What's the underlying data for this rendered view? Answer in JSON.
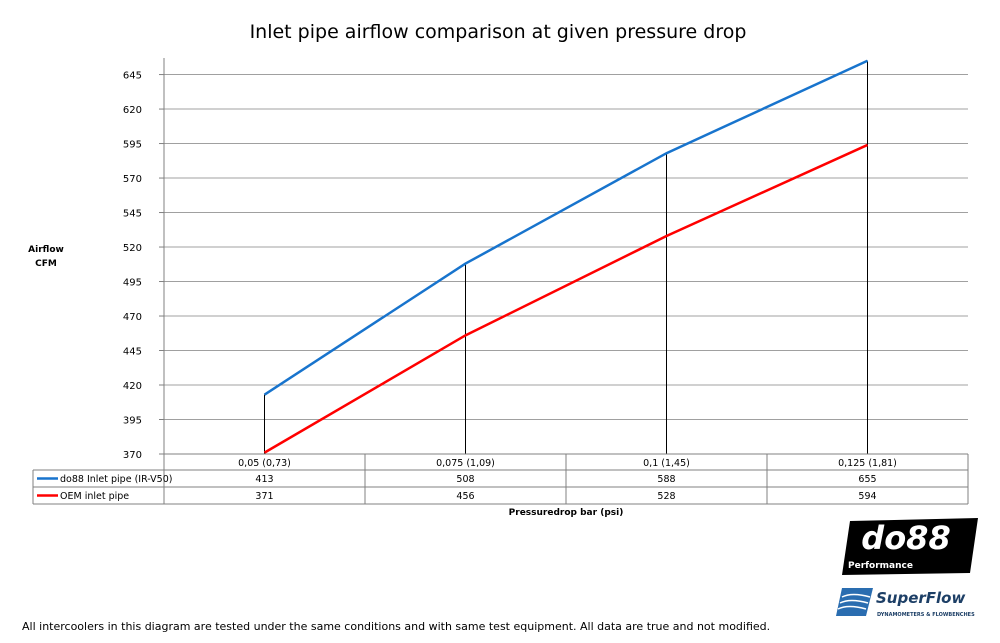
{
  "chart_data": {
    "type": "line",
    "title": "Inlet pipe airflow comparison at given pressure drop",
    "ylabel": [
      "Airflow",
      "CFM"
    ],
    "xlabel": "Pressuredrop bar (psi)",
    "categories": [
      "0,05 (0,73)",
      "0,075 (1,09)",
      "0,1 (1,45)",
      "0,125 (1,81)"
    ],
    "yticks": [
      370,
      395,
      420,
      445,
      470,
      495,
      520,
      545,
      570,
      595,
      620,
      645
    ],
    "ylim": [
      370,
      657
    ],
    "grid": true,
    "legend": "data-table-below",
    "series": [
      {
        "name": "do88 Inlet pipe (IR-V50)",
        "color": "#1874CD",
        "values": [
          413,
          508,
          588,
          655
        ]
      },
      {
        "name": "OEM inlet pipe",
        "color": "#FF0000",
        "values": [
          371,
          456,
          528,
          594
        ]
      }
    ]
  },
  "footnote": "All intercoolers in this diagram are tested under the same conditions and with same test equipment. All data are true and not modified.",
  "logos": {
    "do88": {
      "main": "do88",
      "sub": "Performance"
    },
    "superflow": {
      "main": "SuperFlow",
      "sub": "DYNAMOMETERS & FLOWBENCHES"
    }
  }
}
